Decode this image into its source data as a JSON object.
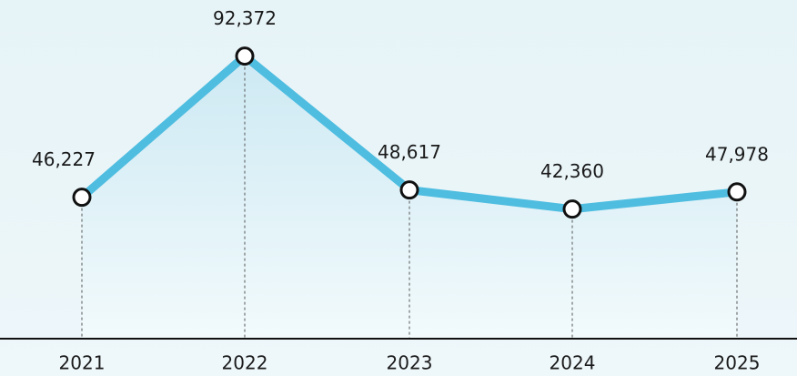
{
  "chart_data": {
    "type": "line",
    "categories": [
      "2021",
      "2022",
      "2023",
      "2024",
      "2025"
    ],
    "values": [
      46227,
      92372,
      48617,
      42360,
      47978
    ],
    "value_labels": [
      "46,227",
      "92,372",
      "48,617",
      "42,360",
      "47,978"
    ],
    "color": "#4fbde0",
    "ylim": [
      0,
      100000
    ]
  }
}
